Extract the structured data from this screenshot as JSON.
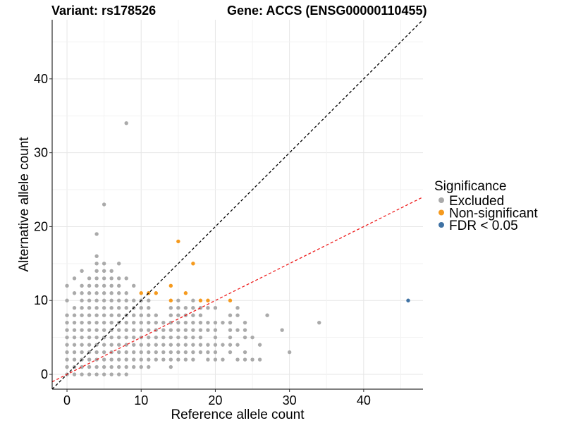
{
  "title_left": "Variant: rs178526",
  "title_right": "Gene: ACCS (ENSG00000110455)",
  "chart_data": {
    "type": "scatter",
    "xlabel": "Reference allele count",
    "ylabel": "Alternative allele count",
    "xlim": [
      -2,
      48
    ],
    "ylim": [
      -2,
      48
    ],
    "x_ticks": [
      0,
      10,
      20,
      30,
      40
    ],
    "y_ticks": [
      0,
      10,
      20,
      30,
      40
    ],
    "grid": true,
    "legend_position": "right",
    "legend": {
      "title": "Significance",
      "entries": [
        {
          "label": "Excluded",
          "color": "#aaaaaa"
        },
        {
          "label": "Non-significant",
          "color": "#f59a1e"
        },
        {
          "label": "FDR < 0.05",
          "color": "#3f72a4"
        }
      ]
    },
    "reference_lines": [
      {
        "slope": 1,
        "intercept": 0,
        "color": "#000000",
        "style": "dashed"
      },
      {
        "slope": 0.5,
        "intercept": 0,
        "color": "#ee1c1c",
        "style": "dashed"
      }
    ],
    "series": [
      {
        "name": "Excluded",
        "color": "#aaaaaa",
        "points": [
          [
            0,
            0
          ],
          [
            0,
            1
          ],
          [
            0,
            2
          ],
          [
            0,
            3
          ],
          [
            0,
            4
          ],
          [
            0,
            5
          ],
          [
            0,
            6
          ],
          [
            0,
            7
          ],
          [
            0,
            8
          ],
          [
            0,
            10
          ],
          [
            0,
            12
          ],
          [
            1,
            0
          ],
          [
            1,
            1
          ],
          [
            1,
            2
          ],
          [
            1,
            3
          ],
          [
            1,
            4
          ],
          [
            1,
            5
          ],
          [
            1,
            6
          ],
          [
            1,
            7
          ],
          [
            1,
            8
          ],
          [
            1,
            9
          ],
          [
            1,
            11
          ],
          [
            1,
            13
          ],
          [
            2,
            0
          ],
          [
            2,
            1
          ],
          [
            2,
            2
          ],
          [
            2,
            3
          ],
          [
            2,
            4
          ],
          [
            2,
            5
          ],
          [
            2,
            6
          ],
          [
            2,
            7
          ],
          [
            2,
            8
          ],
          [
            2,
            9
          ],
          [
            2,
            10
          ],
          [
            2,
            11
          ],
          [
            2,
            12
          ],
          [
            2,
            14
          ],
          [
            3,
            0
          ],
          [
            3,
            1
          ],
          [
            3,
            2
          ],
          [
            3,
            3
          ],
          [
            3,
            4
          ],
          [
            3,
            5
          ],
          [
            3,
            6
          ],
          [
            3,
            7
          ],
          [
            3,
            8
          ],
          [
            3,
            9
          ],
          [
            3,
            10
          ],
          [
            3,
            11
          ],
          [
            3,
            12
          ],
          [
            3,
            13
          ],
          [
            4,
            0
          ],
          [
            4,
            1
          ],
          [
            4,
            2
          ],
          [
            4,
            3
          ],
          [
            4,
            4
          ],
          [
            4,
            5
          ],
          [
            4,
            6
          ],
          [
            4,
            7
          ],
          [
            4,
            8
          ],
          [
            4,
            9
          ],
          [
            4,
            10
          ],
          [
            4,
            11
          ],
          [
            4,
            12
          ],
          [
            4,
            13
          ],
          [
            4,
            14
          ],
          [
            4,
            15
          ],
          [
            4,
            16
          ],
          [
            4,
            19
          ],
          [
            5,
            0
          ],
          [
            5,
            1
          ],
          [
            5,
            2
          ],
          [
            5,
            3
          ],
          [
            5,
            4
          ],
          [
            5,
            5
          ],
          [
            5,
            6
          ],
          [
            5,
            7
          ],
          [
            5,
            8
          ],
          [
            5,
            9
          ],
          [
            5,
            10
          ],
          [
            5,
            11
          ],
          [
            5,
            12
          ],
          [
            5,
            13
          ],
          [
            5,
            14
          ],
          [
            5,
            15
          ],
          [
            5,
            23
          ],
          [
            6,
            0
          ],
          [
            6,
            1
          ],
          [
            6,
            2
          ],
          [
            6,
            3
          ],
          [
            6,
            4
          ],
          [
            6,
            5
          ],
          [
            6,
            6
          ],
          [
            6,
            7
          ],
          [
            6,
            8
          ],
          [
            6,
            9
          ],
          [
            6,
            10
          ],
          [
            6,
            11
          ],
          [
            6,
            12
          ],
          [
            6,
            13
          ],
          [
            6,
            14
          ],
          [
            7,
            0
          ],
          [
            7,
            1
          ],
          [
            7,
            2
          ],
          [
            7,
            3
          ],
          [
            7,
            4
          ],
          [
            7,
            5
          ],
          [
            7,
            6
          ],
          [
            7,
            7
          ],
          [
            7,
            8
          ],
          [
            7,
            9
          ],
          [
            7,
            10
          ],
          [
            7,
            11
          ],
          [
            7,
            12
          ],
          [
            7,
            13
          ],
          [
            7,
            15
          ],
          [
            8,
            0
          ],
          [
            8,
            1
          ],
          [
            8,
            2
          ],
          [
            8,
            3
          ],
          [
            8,
            4
          ],
          [
            8,
            5
          ],
          [
            8,
            6
          ],
          [
            8,
            7
          ],
          [
            8,
            8
          ],
          [
            8,
            9
          ],
          [
            8,
            10
          ],
          [
            8,
            11
          ],
          [
            8,
            13
          ],
          [
            8,
            34
          ],
          [
            9,
            1
          ],
          [
            9,
            2
          ],
          [
            9,
            3
          ],
          [
            9,
            4
          ],
          [
            9,
            5
          ],
          [
            9,
            6
          ],
          [
            9,
            7
          ],
          [
            9,
            8
          ],
          [
            9,
            9
          ],
          [
            9,
            10
          ],
          [
            9,
            12
          ],
          [
            10,
            1
          ],
          [
            10,
            2
          ],
          [
            10,
            3
          ],
          [
            10,
            4
          ],
          [
            10,
            5
          ],
          [
            10,
            6
          ],
          [
            10,
            7
          ],
          [
            10,
            8
          ],
          [
            10,
            9
          ],
          [
            10,
            10
          ],
          [
            11,
            1
          ],
          [
            11,
            2
          ],
          [
            11,
            3
          ],
          [
            11,
            4
          ],
          [
            11,
            5
          ],
          [
            11,
            6
          ],
          [
            11,
            7
          ],
          [
            11,
            8
          ],
          [
            11,
            9
          ],
          [
            11,
            10
          ],
          [
            12,
            2
          ],
          [
            12,
            3
          ],
          [
            12,
            4
          ],
          [
            12,
            5
          ],
          [
            12,
            6
          ],
          [
            12,
            7
          ],
          [
            12,
            8
          ],
          [
            13,
            2
          ],
          [
            13,
            3
          ],
          [
            13,
            4
          ],
          [
            13,
            5
          ],
          [
            13,
            6
          ],
          [
            13,
            7
          ],
          [
            14,
            1
          ],
          [
            14,
            2
          ],
          [
            14,
            3
          ],
          [
            14,
            4
          ],
          [
            14,
            5
          ],
          [
            14,
            6
          ],
          [
            14,
            7
          ],
          [
            14,
            8
          ],
          [
            14,
            9
          ],
          [
            15,
            2
          ],
          [
            15,
            3
          ],
          [
            15,
            4
          ],
          [
            15,
            5
          ],
          [
            15,
            6
          ],
          [
            15,
            7
          ],
          [
            15,
            8
          ],
          [
            15,
            9
          ],
          [
            15,
            10
          ],
          [
            16,
            2
          ],
          [
            16,
            3
          ],
          [
            16,
            4
          ],
          [
            16,
            5
          ],
          [
            16,
            6
          ],
          [
            16,
            7
          ],
          [
            16,
            8
          ],
          [
            16,
            9
          ],
          [
            17,
            2
          ],
          [
            17,
            3
          ],
          [
            17,
            4
          ],
          [
            17,
            5
          ],
          [
            17,
            6
          ],
          [
            17,
            7
          ],
          [
            17,
            8
          ],
          [
            17,
            9
          ],
          [
            17,
            10
          ],
          [
            18,
            3
          ],
          [
            18,
            4
          ],
          [
            18,
            5
          ],
          [
            18,
            6
          ],
          [
            18,
            7
          ],
          [
            18,
            8
          ],
          [
            18,
            9
          ],
          [
            19,
            2
          ],
          [
            19,
            3
          ],
          [
            19,
            4
          ],
          [
            19,
            6
          ],
          [
            19,
            7
          ],
          [
            19,
            9
          ],
          [
            20,
            2
          ],
          [
            20,
            3
          ],
          [
            20,
            4
          ],
          [
            20,
            5
          ],
          [
            20,
            6
          ],
          [
            20,
            7
          ],
          [
            20,
            9
          ],
          [
            21,
            2
          ],
          [
            21,
            4
          ],
          [
            21,
            7
          ],
          [
            22,
            3
          ],
          [
            22,
            4
          ],
          [
            22,
            5
          ],
          [
            22,
            6
          ],
          [
            22,
            7
          ],
          [
            22,
            8
          ],
          [
            23,
            2
          ],
          [
            23,
            4
          ],
          [
            23,
            6
          ],
          [
            23,
            8
          ],
          [
            23,
            9
          ],
          [
            24,
            2
          ],
          [
            24,
            3
          ],
          [
            24,
            5
          ],
          [
            24,
            6
          ],
          [
            24,
            7
          ],
          [
            25,
            2
          ],
          [
            25,
            5
          ],
          [
            26,
            2
          ],
          [
            26,
            4
          ],
          [
            27,
            8
          ],
          [
            29,
            6
          ],
          [
            30,
            3
          ],
          [
            34,
            7
          ]
        ]
      },
      {
        "name": "Non-significant",
        "color": "#f59a1e",
        "points": [
          [
            10,
            11
          ],
          [
            11,
            11
          ],
          [
            12,
            11
          ],
          [
            14,
            12
          ],
          [
            14,
            10
          ],
          [
            15,
            18
          ],
          [
            16,
            11
          ],
          [
            17,
            15
          ],
          [
            18,
            10
          ],
          [
            19,
            10
          ],
          [
            22,
            10
          ]
        ]
      },
      {
        "name": "FDR < 0.05",
        "color": "#3f72a4",
        "points": [
          [
            46,
            10
          ]
        ]
      }
    ]
  }
}
